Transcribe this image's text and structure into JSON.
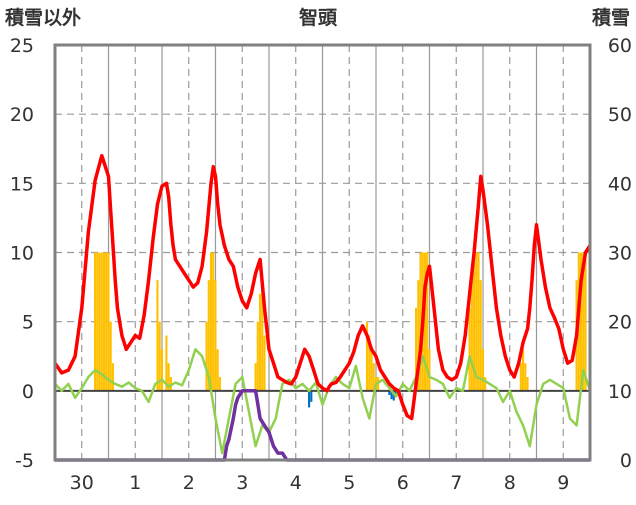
{
  "chart_data": {
    "type": "line",
    "title": "智頭",
    "left_axis": {
      "label": "積雪以外",
      "ylim": [
        -5,
        25
      ],
      "ticks": [
        "-5",
        "0",
        "5",
        "10",
        "15",
        "20",
        "25"
      ]
    },
    "right_axis": {
      "label": "積雪",
      "ylim": [
        0,
        60
      ],
      "ticks": [
        "0",
        "10",
        "20",
        "30",
        "40",
        "50",
        "60"
      ]
    },
    "x_tick_labels": [
      "30",
      "1",
      "2",
      "3",
      "4",
      "5",
      "6",
      "7",
      "8",
      "9"
    ],
    "xlim": [
      -24,
      216
    ],
    "grid": true,
    "legend": "none",
    "colors": {
      "temperature": "#ff0000",
      "min_line": "#92d050",
      "sunshine_bars": "#ffc000",
      "precip_bars": "#0070c0",
      "snow_depth": "#7030a0"
    },
    "series": [
      {
        "key": "temperature",
        "axis": "left",
        "x": [
          -24,
          -21,
          -18,
          -15,
          -12,
          -9,
          -6,
          -3,
          0,
          1,
          2,
          3,
          4,
          6,
          8,
          10,
          12,
          14,
          16,
          18,
          20,
          22,
          24,
          26,
          27,
          28,
          29,
          30,
          32,
          34,
          36,
          38,
          40,
          42,
          44,
          46,
          47,
          48,
          49,
          50,
          52,
          54,
          56,
          58,
          60,
          62,
          64,
          66,
          68,
          70,
          71,
          72,
          74,
          76,
          78,
          80,
          82,
          84,
          86,
          88,
          90,
          92,
          94,
          96,
          98,
          99,
          100,
          102,
          104,
          106,
          108,
          110,
          112,
          114,
          116,
          118,
          120,
          121,
          122,
          124,
          126,
          128,
          130,
          132,
          134,
          136,
          138,
          140,
          141,
          142,
          143,
          144,
          146,
          148,
          150,
          152,
          154,
          156,
          158,
          160,
          162,
          164,
          166,
          167,
          168,
          170,
          172,
          174,
          176,
          178,
          180,
          182,
          184,
          186,
          188,
          189,
          190,
          191,
          192,
          194,
          196,
          198,
          200,
          202,
          204,
          206,
          208,
          210,
          212,
          214,
          216
        ],
        "values": [
          2.0,
          1.3,
          1.5,
          2.5,
          6.0,
          11.5,
          15.2,
          17.0,
          15.5,
          13.0,
          10.5,
          8.0,
          6.0,
          4.0,
          3.0,
          3.5,
          4.0,
          3.8,
          5.5,
          8.0,
          11.0,
          13.5,
          14.8,
          15.0,
          14.0,
          12.0,
          10.5,
          9.5,
          9.0,
          8.5,
          8.0,
          7.5,
          7.8,
          9.0,
          11.5,
          15.0,
          16.2,
          15.5,
          13.5,
          12.0,
          10.5,
          9.5,
          9.0,
          7.5,
          6.5,
          6.0,
          7.0,
          8.5,
          9.5,
          6.0,
          4.5,
          3.0,
          2.0,
          1.0,
          0.8,
          0.6,
          0.5,
          1.0,
          2.0,
          3.0,
          2.5,
          1.5,
          0.5,
          0.2,
          0.0,
          0.3,
          0.5,
          0.6,
          1.0,
          1.5,
          2.0,
          2.8,
          4.0,
          4.7,
          4.0,
          3.0,
          2.5,
          2.0,
          1.5,
          1.0,
          0.5,
          0.2,
          0.0,
          -1.0,
          -1.8,
          -2.0,
          0.5,
          3.0,
          5.0,
          7.5,
          8.5,
          9.0,
          6.0,
          3.0,
          1.5,
          1.0,
          0.8,
          1.0,
          2.0,
          4.0,
          7.0,
          10.0,
          13.5,
          15.5,
          14.5,
          12.0,
          9.0,
          6.0,
          4.0,
          2.5,
          1.5,
          1.0,
          2.0,
          3.5,
          4.5,
          6.0,
          8.0,
          10.5,
          12.0,
          9.5,
          7.5,
          6.0,
          5.3,
          4.5,
          3.0,
          2.0,
          2.2,
          4.0,
          8.0,
          10.0,
          10.5
        ]
      },
      {
        "key": "min_line",
        "axis": "left",
        "x": [
          -24,
          -21,
          -18,
          -15,
          -12,
          -9,
          -6,
          -3,
          0,
          3,
          6,
          9,
          12,
          15,
          18,
          21,
          24,
          27,
          30,
          33,
          36,
          39,
          42,
          45,
          48,
          51,
          54,
          57,
          60,
          63,
          66,
          69,
          72,
          75,
          78,
          81,
          84,
          87,
          90,
          93,
          96,
          99,
          102,
          105,
          108,
          111,
          114,
          117,
          120,
          123,
          126,
          129,
          132,
          135,
          138,
          141,
          144,
          147,
          150,
          153,
          156,
          159,
          162,
          165,
          168,
          171,
          174,
          177,
          180,
          183,
          186,
          189,
          192,
          195,
          198,
          201,
          204,
          207,
          210,
          213,
          216
        ],
        "values": [
          0.5,
          0.0,
          0.5,
          -0.5,
          0.2,
          1.0,
          1.5,
          1.2,
          0.8,
          0.5,
          0.3,
          0.6,
          0.2,
          0.0,
          -0.8,
          0.5,
          0.8,
          0.3,
          0.6,
          0.4,
          1.5,
          3.0,
          2.5,
          1.0,
          -2.0,
          -4.5,
          -2.0,
          0.5,
          1.0,
          -1.5,
          -4.0,
          -2.5,
          -3.0,
          -2.0,
          0.5,
          0.8,
          0.2,
          0.5,
          0.0,
          0.6,
          -1.0,
          0.3,
          1.0,
          0.5,
          0.2,
          1.8,
          -0.5,
          -2.0,
          0.5,
          0.8,
          0.2,
          -0.4,
          0.5,
          0.0,
          1.0,
          2.5,
          1.0,
          0.8,
          0.5,
          -0.5,
          0.2,
          0.0,
          2.5,
          1.0,
          0.8,
          0.5,
          0.2,
          -0.8,
          0.0,
          -1.5,
          -2.5,
          -4.0,
          -1.0,
          0.5,
          0.8,
          0.5,
          0.2,
          -2.0,
          -2.5,
          1.5,
          0.0
        ]
      },
      {
        "key": "snow_depth",
        "axis": "right",
        "x": [
          -24,
          52,
          53,
          54,
          56,
          57,
          58,
          60,
          64,
          66,
          67,
          68,
          70,
          72,
          74,
          76,
          78,
          80,
          82,
          84,
          85,
          86,
          88,
          216
        ],
        "values": [
          0,
          0,
          2,
          3,
          6,
          8,
          9,
          10,
          10,
          10,
          8,
          6,
          5,
          4,
          2,
          1,
          1,
          0,
          0,
          0,
          0,
          0,
          0,
          0
        ]
      }
    ],
    "bars": {
      "axis": "left",
      "key": "sunshine_bars",
      "x": [
        -6,
        -5,
        -4,
        -3,
        -2,
        -1,
        0,
        1,
        2,
        22,
        23,
        24,
        26,
        27,
        28,
        44,
        45,
        46,
        47,
        48,
        49,
        50,
        66,
        67,
        68,
        69,
        70,
        116,
        117,
        118,
        119,
        120,
        121,
        138,
        139,
        140,
        141,
        142,
        143,
        144,
        162,
        163,
        164,
        165,
        166,
        167,
        168,
        169,
        185,
        186,
        187,
        188,
        210,
        211,
        212,
        213,
        214
      ],
      "values": [
        10,
        10,
        10,
        10,
        10,
        10,
        10,
        5,
        2,
        8,
        5,
        3,
        4,
        2,
        1,
        5,
        8,
        10,
        10,
        8,
        3,
        1,
        2,
        5,
        7,
        8,
        4,
        5,
        4,
        3,
        2,
        1,
        1,
        6,
        8,
        10,
        10,
        10,
        10,
        3,
        6,
        8,
        10,
        10,
        10,
        8,
        3,
        1,
        2,
        3,
        2,
        1,
        8,
        10,
        10,
        10,
        10
      ]
    },
    "precip_bars": {
      "axis": "left",
      "x": [
        90,
        91,
        126,
        127,
        128,
        129
      ],
      "values": [
        -1.2,
        -0.8,
        -0.3,
        -0.6,
        -0.7,
        -0.2
      ]
    }
  }
}
